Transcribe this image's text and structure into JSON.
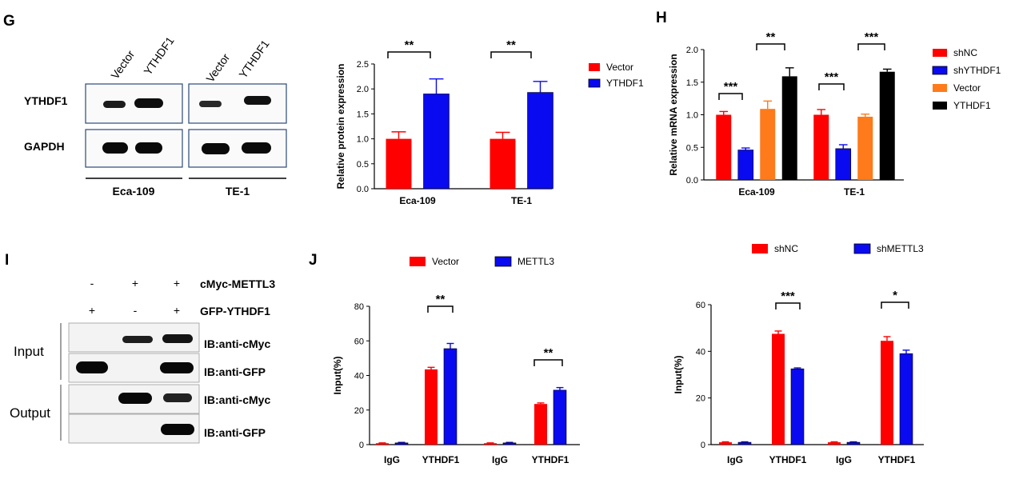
{
  "panels": {
    "G": "G",
    "H": "H",
    "I": "I",
    "J": "J"
  },
  "blot_g": {
    "lane_labels": [
      "Vector",
      "YTHDF1",
      "Vector",
      "YTHDF1"
    ],
    "row_labels": [
      "YTHDF1",
      "GAPDH"
    ],
    "cell_lines": [
      "Eca-109",
      "TE-1"
    ]
  },
  "blot_i": {
    "row1_signs": [
      "-",
      "+",
      "+"
    ],
    "row1_label": "cMyc-METTL3",
    "row2_signs": [
      "+",
      "-",
      "+"
    ],
    "row2_label": "GFP-YTHDF1",
    "input_label": "Input",
    "output_label": "Output",
    "ib_labels": [
      "IB:anti-cMyc",
      "IB:anti-GFP",
      "IB:anti-cMyc",
      "IB:anti-GFP"
    ]
  },
  "colors": {
    "red": "#ff0000",
    "blue": "#0a0af0",
    "orange": "#ff7a1a",
    "black": "#000000"
  },
  "chart_data": [
    {
      "id": "G-chart",
      "type": "bar",
      "ylabel": "Relative protein expression",
      "ylim": [
        0,
        2.5
      ],
      "yticks": [
        "0.0",
        "0.5",
        "1.0",
        "1.5",
        "2.0",
        "2.5"
      ],
      "categories": [
        "Eca-109",
        "TE-1"
      ],
      "series": [
        {
          "name": "Vector",
          "color": "#ff0000",
          "values": [
            1.0,
            1.0
          ],
          "errors": [
            0.14,
            0.13
          ]
        },
        {
          "name": "YTHDF1",
          "color": "#0a0af0",
          "values": [
            1.9,
            1.93
          ],
          "errors": [
            0.3,
            0.22
          ]
        }
      ],
      "significance": [
        "**",
        "**"
      ],
      "legend_position": "top-right"
    },
    {
      "id": "H-chart",
      "type": "bar",
      "ylabel": "Relative mRNA expression",
      "ylim": [
        0,
        2.0
      ],
      "yticks": [
        "0.0",
        "0.5",
        "1.0",
        "1.5",
        "2.0"
      ],
      "categories": [
        "Eca-109",
        "TE-1"
      ],
      "series": [
        {
          "name": "shNC",
          "color": "#ff0000",
          "values": [
            1.0,
            1.0
          ],
          "errors": [
            0.05,
            0.08
          ]
        },
        {
          "name": "shYTHDF1",
          "color": "#0a0af0",
          "values": [
            0.46,
            0.48
          ],
          "errors": [
            0.03,
            0.06
          ]
        },
        {
          "name": "Vector",
          "color": "#ff7a1a",
          "values": [
            1.09,
            0.97
          ],
          "errors": [
            0.12,
            0.04
          ]
        },
        {
          "name": "YTHDF1",
          "color": "#000000",
          "values": [
            1.59,
            1.66
          ],
          "errors": [
            0.13,
            0.04
          ]
        }
      ],
      "significance": [
        "***",
        "**",
        "***",
        "***"
      ],
      "legend_position": "right"
    },
    {
      "id": "J-chart-left",
      "type": "bar",
      "ylabel": "Input(%)",
      "ylim": [
        0,
        80
      ],
      "yticks": [
        "0",
        "20",
        "40",
        "60",
        "80"
      ],
      "categories": [
        "IgG",
        "YTHDF1",
        "IgG",
        "YTHDF1"
      ],
      "series": [
        {
          "name": "Vector",
          "color": "#ff0000",
          "values": [
            0.8,
            43.5,
            0.8,
            23.5
          ],
          "errors": [
            0.2,
            1.2,
            0.2,
            0.6
          ]
        },
        {
          "name": "METTL3",
          "color": "#0a0af0",
          "values": [
            1.0,
            55.5,
            1.0,
            31.5
          ],
          "errors": [
            0.3,
            3.0,
            0.3,
            1.5
          ]
        }
      ],
      "significance": [
        "**",
        "**"
      ],
      "legend_position": "top"
    },
    {
      "id": "J-chart-right",
      "type": "bar",
      "ylabel": "Input(%)",
      "ylim": [
        0,
        60
      ],
      "yticks": [
        "0",
        "20",
        "40",
        "60"
      ],
      "categories": [
        "IgG",
        "YTHDF1",
        "IgG",
        "YTHDF1"
      ],
      "series": [
        {
          "name": "shNC",
          "color": "#ff0000",
          "values": [
            1.0,
            47.5,
            1.0,
            44.5
          ],
          "errors": [
            0.2,
            1.2,
            0.2,
            1.8
          ]
        },
        {
          "name": "shMETTL3",
          "color": "#0a0af0",
          "values": [
            1.0,
            32.5,
            1.0,
            39.0
          ],
          "errors": [
            0.2,
            0.4,
            0.2,
            1.5
          ]
        }
      ],
      "significance": [
        "***",
        "*"
      ],
      "legend_position": "top"
    }
  ]
}
